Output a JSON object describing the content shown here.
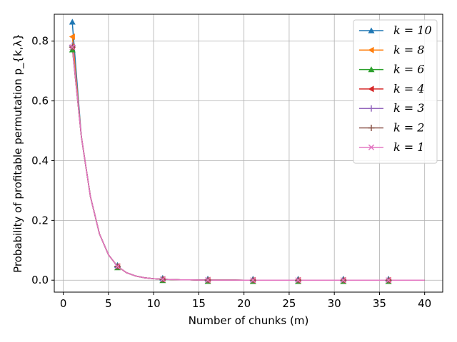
{
  "chart_data": {
    "type": "line",
    "xlabel": "Number of chunks (m)",
    "ylabel": "Probability of profitable permutation p_{k,λ}",
    "xlim": [
      -1,
      42
    ],
    "ylim": [
      -0.04,
      0.89
    ],
    "x_ticks": [
      0,
      5,
      10,
      15,
      20,
      25,
      30,
      35,
      40
    ],
    "y_ticks": [
      0.0,
      0.2,
      0.4,
      0.6,
      0.8
    ],
    "x_tick_labels": [
      "0",
      "5",
      "10",
      "15",
      "20",
      "25",
      "30",
      "35",
      "40"
    ],
    "y_tick_labels": [
      "0.0",
      "0.2",
      "0.4",
      "0.6",
      "0.8"
    ],
    "grid": true,
    "legend_position": "top-right",
    "x": [
      1,
      2,
      3,
      4,
      5,
      6,
      7,
      8,
      9,
      10,
      11,
      12,
      13,
      14,
      15,
      16,
      17,
      18,
      19,
      20,
      21,
      22,
      23,
      24,
      25,
      26,
      27,
      28,
      29,
      30,
      31,
      32,
      33,
      34,
      35,
      36,
      37,
      38,
      39,
      40
    ],
    "base_curve": [
      0.78,
      0.48,
      0.28,
      0.155,
      0.085,
      0.046,
      0.025,
      0.014,
      0.008,
      0.005,
      0.003,
      0.002,
      0.001,
      0.001,
      0.0005,
      0.0003,
      0.0002,
      0.0001,
      0.0001,
      0.0,
      0.0,
      0.0,
      0.0,
      0.0,
      0.0,
      0.0,
      0.0,
      0.0,
      0.0,
      0.0,
      0.0,
      0.0,
      0.0,
      0.0,
      0.0,
      0.0,
      0.0,
      0.0,
      0.0,
      0.0
    ],
    "marker_x": [
      1,
      6,
      11,
      16,
      21,
      26,
      31,
      36
    ],
    "series": [
      {
        "name": "k = 10",
        "color": "#1f77b4",
        "marker": "triangle-up",
        "first": 0.86,
        "offset": 0.0,
        "mark_offset": 0.004
      },
      {
        "name": "k = 8",
        "color": "#ff7f0e",
        "marker": "triangle-left",
        "first": 0.815,
        "offset": 0.0,
        "mark_offset": 0.0
      },
      {
        "name": "k = 6",
        "color": "#2ca02c",
        "marker": "triangle-up",
        "first": 0.775,
        "offset": 0.0,
        "mark_offset": -0.004
      },
      {
        "name": "k = 4",
        "color": "#d62728",
        "marker": "triangle-left",
        "first": 0.78,
        "offset": 0.0,
        "mark_offset": 0.0
      },
      {
        "name": "k = 3",
        "color": "#9467bd",
        "marker": "plus",
        "first": 0.785,
        "offset": 0.0,
        "mark_offset": 0.0
      },
      {
        "name": "k = 2",
        "color": "#8c564b",
        "marker": "plus",
        "first": 0.78,
        "offset": 0.0,
        "mark_offset": 0.0
      },
      {
        "name": "k = 1",
        "color": "#e377c2",
        "marker": "x",
        "first": 0.78,
        "offset": 0.0,
        "mark_offset": 0.0
      }
    ]
  }
}
